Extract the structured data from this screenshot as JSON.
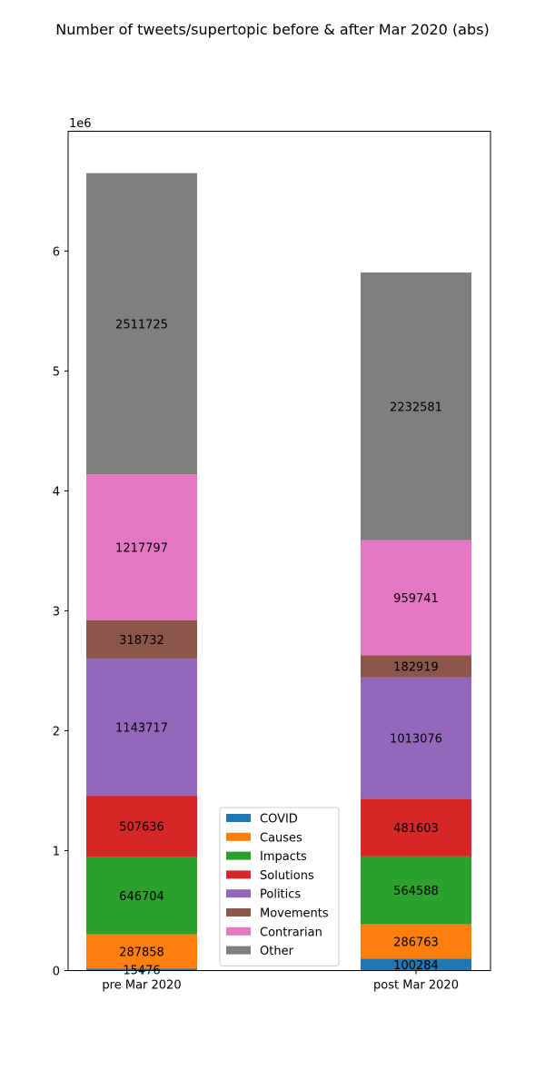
{
  "chart_data": {
    "type": "bar",
    "stacked": true,
    "title": "Number of tweets/supertopic before & after Mar 2020 (abs)",
    "xlabel": "",
    "ylabel": "",
    "y_offset_text": "1e6",
    "ylim": [
      0,
      6999000
    ],
    "yticks": [
      0,
      1,
      2,
      3,
      4,
      5,
      6
    ],
    "categories": [
      "pre Mar 2020",
      "post Mar 2020"
    ],
    "series": [
      {
        "name": "COVID",
        "color": "#1f77b4",
        "values": [
          15476,
          100284
        ]
      },
      {
        "name": "Causes",
        "color": "#ff7f0e",
        "values": [
          287858,
          286763
        ]
      },
      {
        "name": "Impacts",
        "color": "#2ca02c",
        "values": [
          646704,
          564588
        ]
      },
      {
        "name": "Solutions",
        "color": "#d62728",
        "values": [
          507636,
          481603
        ]
      },
      {
        "name": "Politics",
        "color": "#9467bd",
        "values": [
          1143717,
          1013076
        ]
      },
      {
        "name": "Movements",
        "color": "#8c564b",
        "values": [
          318732,
          182919
        ]
      },
      {
        "name": "Contrarian",
        "color": "#e377c2",
        "values": [
          1217797,
          959741
        ]
      },
      {
        "name": "Other",
        "color": "#7f7f7f",
        "values": [
          2511725,
          2232581
        ]
      }
    ],
    "grid": false,
    "legend_position": "lower-center"
  }
}
